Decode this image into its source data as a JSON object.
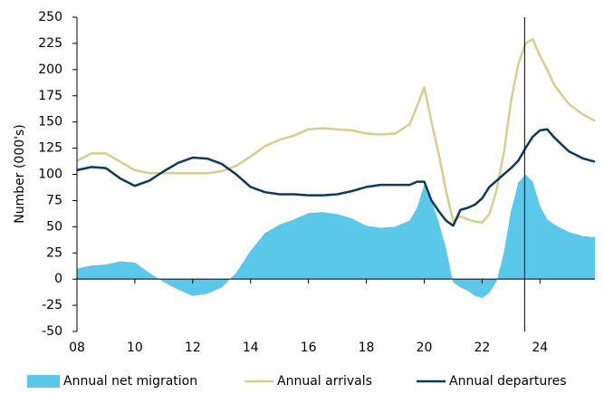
{
  "chart_data": {
    "type": "line",
    "ylabel": "Number (000's)",
    "x": [
      8,
      8.5,
      9,
      9.5,
      10,
      10.5,
      11,
      11.5,
      12,
      12.5,
      13,
      13.5,
      14,
      14.5,
      15,
      15.5,
      16,
      16.5,
      17,
      17.5,
      18,
      18.5,
      19,
      19.5,
      19.75,
      20,
      20.25,
      20.5,
      20.75,
      21,
      21.25,
      21.5,
      21.75,
      22,
      22.25,
      22.5,
      22.75,
      23,
      23.25,
      23.5,
      23.75,
      24,
      24.25,
      24.5,
      25,
      25.5,
      25.9
    ],
    "series": [
      {
        "name": "Annual net migration",
        "kind": "area",
        "color": "#5bc8ea",
        "values": [
          10,
          13,
          14,
          17,
          16,
          6,
          -3,
          -10,
          -16,
          -14,
          -8,
          6,
          27,
          44,
          52,
          57,
          63,
          64,
          62,
          58,
          51,
          49,
          50,
          56,
          68,
          90,
          75,
          55,
          30,
          -3,
          -8,
          -11,
          -16,
          -18,
          -13,
          -2,
          25,
          65,
          92,
          100,
          93,
          70,
          57,
          52,
          45,
          41,
          40
        ]
      },
      {
        "name": "Annual arrivals",
        "kind": "line",
        "color": "#d4cf8f",
        "values": [
          113,
          120,
          120,
          112,
          104,
          101,
          101,
          101,
          101,
          101,
          103,
          108,
          117,
          127,
          133,
          137,
          143,
          144,
          143,
          142,
          139,
          138,
          139,
          148,
          165,
          183,
          150,
          120,
          85,
          55,
          60,
          57,
          55,
          54,
          62,
          85,
          120,
          170,
          205,
          225,
          229,
          213,
          200,
          185,
          167,
          157,
          151
        ]
      },
      {
        "name": "Annual departures",
        "kind": "line",
        "color": "#0d3a5c",
        "values": [
          104,
          107,
          106,
          96,
          89,
          94,
          103,
          111,
          116,
          115,
          110,
          100,
          88,
          83,
          81,
          81,
          80,
          80,
          81,
          84,
          88,
          90,
          90,
          90,
          93,
          93,
          75,
          65,
          56,
          51,
          66,
          68,
          71,
          77,
          88,
          94,
          100,
          106,
          113,
          125,
          136,
          142,
          143,
          135,
          122,
          115,
          112
        ]
      }
    ],
    "xlim": [
      8,
      25.9
    ],
    "xticks": [
      {
        "value": 8,
        "label": "08"
      },
      10,
      12,
      14,
      16,
      18,
      20,
      22,
      24
    ],
    "ylim": [
      -50,
      250
    ],
    "yticks": [
      -50,
      -25,
      0,
      25,
      50,
      75,
      100,
      125,
      150,
      175,
      200,
      225,
      250
    ],
    "vline": 23.47,
    "grid": false,
    "legend": "bottom"
  }
}
